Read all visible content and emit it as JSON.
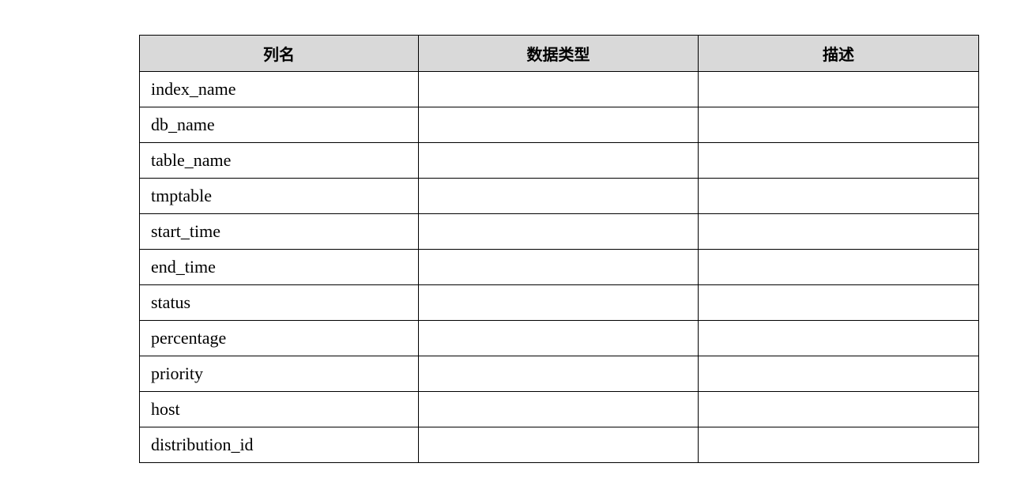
{
  "table": {
    "headers": [
      "列名",
      "数据类型",
      "描述"
    ],
    "rows": [
      [
        "index_name",
        "",
        ""
      ],
      [
        "db_name",
        "",
        ""
      ],
      [
        "table_name",
        "",
        ""
      ],
      [
        "tmptable",
        "",
        ""
      ],
      [
        "start_time",
        "",
        ""
      ],
      [
        "end_time",
        "",
        ""
      ],
      [
        "status",
        "",
        ""
      ],
      [
        "percentage",
        "",
        ""
      ],
      [
        "priority",
        "",
        ""
      ],
      [
        "host",
        "",
        ""
      ],
      [
        "distribution_id",
        "",
        ""
      ]
    ],
    "header_bg": "#d9d9d9"
  }
}
